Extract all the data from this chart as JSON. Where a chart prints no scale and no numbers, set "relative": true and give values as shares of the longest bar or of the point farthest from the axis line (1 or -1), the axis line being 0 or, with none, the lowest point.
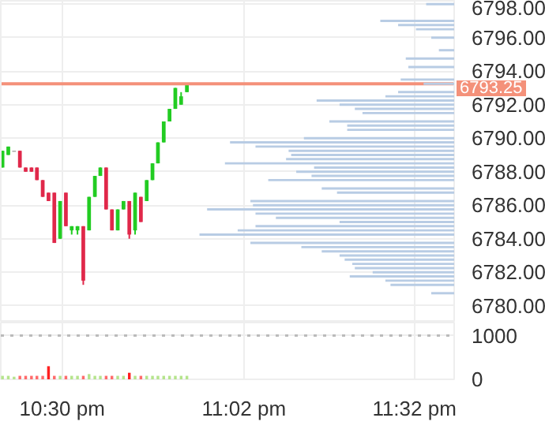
{
  "chart_data": [
    {
      "type": "candlestick",
      "xlim": [
        22.32,
        23.65
      ],
      "ylim": [
        6779.0,
        6798.2
      ],
      "xticks": [
        {
          "value": 22.5,
          "label": null
        },
        {
          "value": 23.0333,
          "label": null
        },
        {
          "value": 23.5333,
          "label": null
        }
      ],
      "yticks": [
        {
          "value": 6780,
          "label": "6780.00"
        },
        {
          "value": 6782,
          "label": "6782.00"
        },
        {
          "value": 6784,
          "label": "6784.00"
        },
        {
          "value": 6786,
          "label": "6786.00"
        },
        {
          "value": 6788,
          "label": "6788.00"
        },
        {
          "value": 6790,
          "label": "6790.00"
        },
        {
          "value": 6792,
          "label": "6792.00"
        },
        {
          "value": 6794,
          "label": "6794.00"
        },
        {
          "value": 6796,
          "label": "6796.00"
        },
        {
          "value": 6798,
          "label": "6798.00"
        }
      ],
      "grid": true,
      "tick_labels": "y",
      "x": [
        22.325,
        22.342,
        22.359,
        22.376,
        22.393,
        22.41,
        22.426,
        22.443,
        22.46,
        22.477,
        22.494,
        22.511,
        22.528,
        22.545,
        22.562,
        22.579,
        22.596,
        22.612,
        22.629,
        22.646,
        22.663,
        22.68,
        22.697,
        22.714,
        22.731,
        22.748,
        22.765,
        22.781,
        22.798,
        22.815,
        22.832,
        22.849,
        22.866
      ],
      "ohlc": [
        [
          6788.25,
          6789.25,
          6788.25,
          6789.25
        ],
        [
          6789.0,
          6789.5,
          6789.0,
          6789.5
        ],
        [
          6789.25,
          6789.25,
          6789.25,
          6789.25
        ],
        [
          6789.25,
          6789.25,
          6788.25,
          6788.25
        ],
        [
          6788.25,
          6788.25,
          6788.0,
          6788.0
        ],
        [
          6788.25,
          6788.25,
          6788.0,
          6788.0
        ],
        [
          6788.25,
          6788.25,
          6787.5,
          6787.5
        ],
        [
          6787.5,
          6787.5,
          6786.5,
          6786.5
        ],
        [
          6786.75,
          6786.75,
          6786.25,
          6786.25
        ],
        [
          6786.75,
          6786.75,
          6783.75,
          6783.75
        ],
        [
          6784.0,
          6786.25,
          6784.0,
          6786.25
        ],
        [
          6786.75,
          6786.75,
          6784.75,
          6784.75
        ],
        [
          6784.5,
          6784.75,
          6784.25,
          6784.75
        ],
        [
          6784.5,
          6784.75,
          6784.25,
          6784.75
        ],
        [
          6784.75,
          6784.75,
          6781.25,
          6781.5
        ],
        [
          6784.5,
          6786.5,
          6784.5,
          6786.5
        ],
        [
          6786.5,
          6787.75,
          6786.5,
          6787.75
        ],
        [
          6787.75,
          6788.25,
          6787.75,
          6788.25
        ],
        [
          6788.25,
          6788.25,
          6785.75,
          6785.75
        ],
        [
          6785.75,
          6785.75,
          6784.5,
          6784.5
        ],
        [
          6784.5,
          6785.75,
          6784.5,
          6785.75
        ],
        [
          6785.75,
          6786.25,
          6785.75,
          6786.25
        ],
        [
          6786.25,
          6786.25,
          6784.0,
          6784.25
        ],
        [
          6784.5,
          6786.75,
          6784.25,
          6786.75
        ],
        [
          6786.5,
          6786.5,
          6785.0,
          6785.0
        ],
        [
          6786.25,
          6787.5,
          6786.25,
          6787.5
        ],
        [
          6787.5,
          6788.5,
          6787.5,
          6788.5
        ],
        [
          6788.5,
          6789.75,
          6788.5,
          6789.75
        ],
        [
          6789.75,
          6791.0,
          6789.75,
          6791.0
        ],
        [
          6791.0,
          6791.75,
          6791.0,
          6791.75
        ],
        [
          6791.75,
          6793.0,
          6791.75,
          6793.0
        ],
        [
          6792.0,
          6792.75,
          6792.0,
          6792.5
        ],
        [
          6792.75,
          6793.25,
          6792.75,
          6793.25
        ]
      ],
      "colors": [
        "#22cc22",
        "#22cc22",
        "#999999",
        "#e0284a",
        "#e0284a",
        "#e0284a",
        "#e0284a",
        "#e0284a",
        "#e0284a",
        "#e0284a",
        "#22cc22",
        "#e0284a",
        "#22cc22",
        "#22cc22",
        "#e0284a",
        "#22cc22",
        "#22cc22",
        "#22cc22",
        "#e0284a",
        "#e0284a",
        "#22cc22",
        "#22cc22",
        "#e0284a",
        "#22cc22",
        "#e0284a",
        "#22cc22",
        "#22cc22",
        "#22cc22",
        "#22cc22",
        "#22cc22",
        "#22cc22",
        "#22cc22",
        "#22cc22"
      ],
      "ref_lines": [
        {
          "axis": "y",
          "value": 6793.25,
          "label": "6793.25",
          "color": "#f4917a"
        }
      ]
    },
    {
      "type": "bar",
      "orientation": "horizontal",
      "relative": true,
      "color": "#b8cce4",
      "ylim": [
        6779.0,
        6798.2
      ],
      "tick_labels": false,
      "x": [
        6798.0,
        6797.0,
        6796.75,
        6796.5,
        6796.0,
        6795.25,
        6794.75,
        6794.25,
        6793.5,
        6793.25,
        6792.75,
        6792.5,
        6792.25,
        6792.0,
        6791.75,
        6791.5,
        6791.0,
        6790.75,
        6790.5,
        6790.0,
        6789.75,
        6789.5,
        6789.25,
        6789.0,
        6788.75,
        6788.5,
        6788.25,
        6788.0,
        6787.75,
        6787.5,
        6787.0,
        6786.75,
        6786.25,
        6786.0,
        6785.75,
        6785.5,
        6785.25,
        6785.0,
        6784.75,
        6784.5,
        6784.25,
        6783.75,
        6783.5,
        6783.25,
        6783.0,
        6782.75,
        6782.5,
        6782.25,
        6782.0,
        6781.75,
        6781.5,
        6781.25,
        6780.75
      ],
      "values": [
        0.11,
        0.29,
        0.22,
        0.15,
        0.09,
        0.06,
        0.19,
        0.18,
        0.21,
        0.12,
        0.22,
        0.27,
        0.54,
        0.45,
        0.39,
        0.36,
        0.49,
        0.42,
        0.42,
        0.59,
        0.88,
        0.78,
        0.65,
        0.64,
        0.66,
        0.9,
        0.55,
        0.62,
        0.56,
        0.73,
        0.52,
        0.46,
        0.8,
        0.79,
        0.97,
        0.78,
        0.7,
        0.45,
        0.78,
        0.85,
        1,
        0.8,
        0.6,
        0.52,
        0.45,
        0.43,
        0.4,
        0.39,
        0.32,
        0.41,
        0.27,
        0.25,
        0.09
      ]
    },
    {
      "type": "bar",
      "xlim": [
        22.32,
        23.65
      ],
      "ylim": [
        0,
        1300
      ],
      "xticks": [
        {
          "value": 22.5,
          "label": "10:30 pm"
        },
        {
          "value": 23.0333,
          "label": "11:02 pm"
        },
        {
          "value": 23.5333,
          "label": "11:32 pm"
        }
      ],
      "yticks": [
        0,
        1000
      ],
      "grid": true,
      "x": [
        22.325,
        22.342,
        22.359,
        22.376,
        22.393,
        22.41,
        22.426,
        22.443,
        22.46,
        22.477,
        22.494,
        22.511,
        22.528,
        22.545,
        22.562,
        22.579,
        22.596,
        22.612,
        22.629,
        22.646,
        22.663,
        22.68,
        22.697,
        22.714,
        22.731,
        22.748,
        22.765,
        22.781,
        22.798,
        22.815,
        22.832,
        22.849,
        22.866
      ],
      "values": [
        80,
        80,
        60,
        80,
        80,
        80,
        80,
        80,
        300,
        80,
        80,
        80,
        80,
        80,
        80,
        120,
        80,
        80,
        80,
        80,
        80,
        80,
        150,
        80,
        80,
        80,
        80,
        80,
        80,
        80,
        80,
        80,
        80
      ],
      "colors": [
        "#b5e48c",
        "#b5e48c",
        "#b5e48c",
        "#ff6b6b",
        "#ff6b6b",
        "#ff6b6b",
        "#ff6b6b",
        "#ff6b6b",
        "#ff2020",
        "#ff6b6b",
        "#b5e48c",
        "#ff6b6b",
        "#b5e48c",
        "#b5e48c",
        "#ff6b6b",
        "#b5e48c",
        "#b5e48c",
        "#b5e48c",
        "#ff6b6b",
        "#ff6b6b",
        "#b5e48c",
        "#b5e48c",
        "#ff2020",
        "#b5e48c",
        "#ff6b6b",
        "#b5e48c",
        "#b5e48c",
        "#b5e48c",
        "#b5e48c",
        "#b5e48c",
        "#b5e48c",
        "#b5e48c",
        "#b5e48c"
      ],
      "ref_lines": [
        {
          "axis": "y",
          "value": 1000,
          "line_style": "dotted",
          "color": "#bbbbbb"
        }
      ]
    }
  ]
}
